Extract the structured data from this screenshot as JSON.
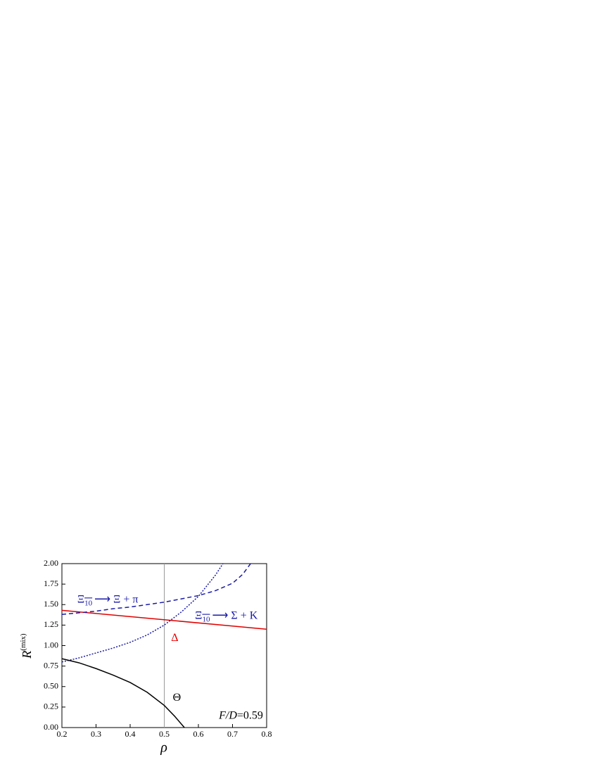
{
  "chart_data": {
    "type": "line",
    "xlabel": "ρ",
    "ylabel": {
      "main": "R",
      "sup": "(mix)"
    },
    "xlim": [
      0.2,
      0.8
    ],
    "xticks": [
      0.2,
      0.3,
      0.4,
      0.5,
      0.6,
      0.7,
      0.8
    ],
    "ylim": [
      0,
      2
    ],
    "yticks": [
      {
        "value": 0,
        "label": "0.00"
      },
      {
        "value": 0.25,
        "label": "0.25"
      },
      {
        "value": 0.5,
        "label": "0.50"
      },
      {
        "value": 0.75,
        "label": "0.75"
      },
      {
        "value": 1,
        "label": "1.00"
      },
      {
        "value": 1.25,
        "label": "1.25"
      },
      {
        "value": 1.5,
        "label": "1.50"
      },
      {
        "value": 1.75,
        "label": "1.75"
      },
      {
        "value": 2,
        "label": "2.00"
      }
    ],
    "vline": 0.5,
    "series": [
      {
        "color": "#e00000",
        "dash": "solid",
        "x": [
          0.2,
          0.8
        ],
        "values": [
          1.43,
          1.2
        ]
      },
      {
        "color": "#1a1aa8",
        "dash": "dashed",
        "x": [
          0.2,
          0.25,
          0.3,
          0.35,
          0.4,
          0.45,
          0.5,
          0.55,
          0.6,
          0.65,
          0.7,
          0.73,
          0.753
        ],
        "values": [
          1.38,
          1.4,
          1.42,
          1.45,
          1.47,
          1.5,
          1.53,
          1.57,
          1.61,
          1.67,
          1.76,
          1.87,
          2.0
        ]
      },
      {
        "color": "#1a1aa8",
        "dash": "dotted",
        "x": [
          0.2,
          0.25,
          0.3,
          0.35,
          0.4,
          0.45,
          0.5,
          0.55,
          0.6,
          0.65,
          0.672
        ],
        "values": [
          0.8,
          0.85,
          0.91,
          0.97,
          1.04,
          1.13,
          1.25,
          1.41,
          1.6,
          1.86,
          2.0
        ]
      },
      {
        "color": "#000000",
        "dash": "solid",
        "x": [
          0.2,
          0.25,
          0.3,
          0.35,
          0.4,
          0.45,
          0.5,
          0.53,
          0.559
        ],
        "values": [
          0.84,
          0.79,
          0.72,
          0.64,
          0.55,
          0.43,
          0.27,
          0.14,
          0.0
        ]
      }
    ],
    "annotations": [
      {
        "sym": "Ξ",
        "sub": "10",
        "rest": "⟶ Ξ + π",
        "color": "#1a1aa8",
        "x": 0.245,
        "y": 1.56
      },
      {
        "sym": "Ξ",
        "sub": "10",
        "rest": "⟶ Σ + K",
        "color": "#1a1aa8",
        "x": 0.59,
        "y": 1.36
      },
      {
        "sym": "Δ",
        "color": "#e00000",
        "x": 0.52,
        "y": 1.09
      },
      {
        "sym": "Θ",
        "color": "#000000",
        "x": 0.525,
        "y": 0.36
      },
      {
        "italic": "F/D",
        "rest": "=0.59",
        "color": "#000000",
        "x": 0.66,
        "y": 0.14
      }
    ]
  }
}
